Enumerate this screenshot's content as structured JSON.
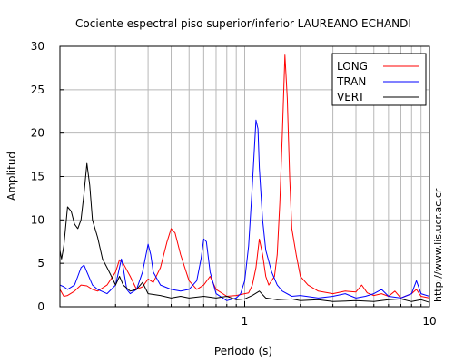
{
  "chart_data": {
    "type": "line",
    "title": "Cociente espectral piso superior/inferior LAUREANO ECHANDI",
    "xlabel": "Periodo (s)",
    "ylabel": "Amplitud",
    "xscale": "log",
    "xlim": [
      0.1,
      10
    ],
    "ylim": [
      0,
      30
    ],
    "grid": true,
    "legend_position": "top-right",
    "x_ticks": [
      {
        "value": 1,
        "label": "1"
      },
      {
        "value": 10,
        "label": "10"
      }
    ],
    "y_ticks": [
      {
        "value": 0,
        "label": "0"
      },
      {
        "value": 5,
        "label": "5"
      },
      {
        "value": 10,
        "label": "10"
      },
      {
        "value": 15,
        "label": "15"
      },
      {
        "value": 20,
        "label": "20"
      },
      {
        "value": 25,
        "label": "25"
      },
      {
        "value": 30,
        "label": "30"
      }
    ],
    "series": [
      {
        "name": "LONG",
        "color": "#ff0000",
        "points": [
          [
            0.1,
            2.0
          ],
          [
            0.105,
            1.2
          ],
          [
            0.11,
            1.3
          ],
          [
            0.12,
            1.8
          ],
          [
            0.13,
            2.5
          ],
          [
            0.14,
            2.4
          ],
          [
            0.15,
            2.0
          ],
          [
            0.16,
            1.8
          ],
          [
            0.18,
            2.5
          ],
          [
            0.2,
            4.0
          ],
          [
            0.21,
            5.4
          ],
          [
            0.22,
            5.0
          ],
          [
            0.24,
            3.5
          ],
          [
            0.26,
            2.0
          ],
          [
            0.28,
            2.3
          ],
          [
            0.3,
            3.2
          ],
          [
            0.32,
            2.8
          ],
          [
            0.35,
            4.5
          ],
          [
            0.38,
            7.5
          ],
          [
            0.4,
            9.0
          ],
          [
            0.42,
            8.5
          ],
          [
            0.45,
            6.0
          ],
          [
            0.5,
            3.0
          ],
          [
            0.55,
            2.0
          ],
          [
            0.6,
            2.5
          ],
          [
            0.65,
            3.5
          ],
          [
            0.7,
            2.0
          ],
          [
            0.8,
            1.2
          ],
          [
            0.9,
            1.3
          ],
          [
            1.0,
            1.5
          ],
          [
            1.05,
            1.6
          ],
          [
            1.1,
            2.5
          ],
          [
            1.15,
            4.5
          ],
          [
            1.2,
            7.8
          ],
          [
            1.25,
            6.0
          ],
          [
            1.3,
            3.5
          ],
          [
            1.35,
            2.5
          ],
          [
            1.45,
            3.5
          ],
          [
            1.5,
            6.0
          ],
          [
            1.55,
            12.0
          ],
          [
            1.6,
            20.0
          ],
          [
            1.65,
            29.0
          ],
          [
            1.7,
            24.0
          ],
          [
            1.75,
            15.0
          ],
          [
            1.8,
            9.0
          ],
          [
            1.9,
            6.0
          ],
          [
            2.0,
            3.5
          ],
          [
            2.2,
            2.5
          ],
          [
            2.5,
            1.8
          ],
          [
            3.0,
            1.5
          ],
          [
            3.5,
            1.8
          ],
          [
            4.0,
            1.7
          ],
          [
            4.3,
            2.5
          ],
          [
            4.6,
            1.6
          ],
          [
            5.0,
            1.3
          ],
          [
            5.5,
            1.5
          ],
          [
            6.0,
            1.2
          ],
          [
            6.5,
            1.8
          ],
          [
            7.0,
            1.0
          ],
          [
            8.0,
            1.5
          ],
          [
            8.5,
            2.0
          ],
          [
            9.0,
            1.2
          ],
          [
            10.0,
            1.0
          ]
        ]
      },
      {
        "name": "TRAN",
        "color": "#0000ff",
        "points": [
          [
            0.1,
            2.5
          ],
          [
            0.105,
            2.3
          ],
          [
            0.11,
            2.0
          ],
          [
            0.12,
            2.5
          ],
          [
            0.125,
            3.5
          ],
          [
            0.13,
            4.5
          ],
          [
            0.135,
            4.8
          ],
          [
            0.14,
            4.0
          ],
          [
            0.15,
            2.5
          ],
          [
            0.16,
            2.0
          ],
          [
            0.18,
            1.5
          ],
          [
            0.2,
            2.5
          ],
          [
            0.21,
            4.5
          ],
          [
            0.215,
            5.5
          ],
          [
            0.22,
            4.5
          ],
          [
            0.23,
            2.0
          ],
          [
            0.24,
            1.5
          ],
          [
            0.26,
            2.0
          ],
          [
            0.28,
            4.0
          ],
          [
            0.3,
            7.2
          ],
          [
            0.31,
            6.0
          ],
          [
            0.32,
            4.0
          ],
          [
            0.35,
            2.5
          ],
          [
            0.4,
            2.0
          ],
          [
            0.45,
            1.8
          ],
          [
            0.5,
            2.0
          ],
          [
            0.55,
            3.0
          ],
          [
            0.58,
            5.5
          ],
          [
            0.6,
            7.8
          ],
          [
            0.62,
            7.5
          ],
          [
            0.65,
            4.0
          ],
          [
            0.7,
            1.5
          ],
          [
            0.8,
            0.7
          ],
          [
            0.9,
            1.0
          ],
          [
            0.95,
            1.5
          ],
          [
            1.0,
            3.0
          ],
          [
            1.05,
            7.0
          ],
          [
            1.1,
            14.0
          ],
          [
            1.15,
            21.5
          ],
          [
            1.18,
            20.5
          ],
          [
            1.2,
            16.0
          ],
          [
            1.25,
            10.0
          ],
          [
            1.3,
            6.5
          ],
          [
            1.4,
            4.0
          ],
          [
            1.5,
            2.5
          ],
          [
            1.6,
            1.8
          ],
          [
            1.8,
            1.2
          ],
          [
            2.0,
            1.3
          ],
          [
            2.5,
            1.0
          ],
          [
            3.0,
            1.2
          ],
          [
            3.5,
            1.5
          ],
          [
            4.0,
            1.0
          ],
          [
            4.5,
            1.2
          ],
          [
            5.0,
            1.5
          ],
          [
            5.5,
            2.0
          ],
          [
            6.0,
            1.2
          ],
          [
            7.0,
            1.0
          ],
          [
            8.0,
            1.5
          ],
          [
            8.5,
            3.0
          ],
          [
            9.0,
            1.5
          ],
          [
            10.0,
            1.2
          ]
        ]
      },
      {
        "name": "VERT",
        "color": "#000000",
        "points": [
          [
            0.1,
            6.5
          ],
          [
            0.102,
            5.5
          ],
          [
            0.105,
            7.0
          ],
          [
            0.11,
            11.5
          ],
          [
            0.115,
            11.0
          ],
          [
            0.12,
            9.5
          ],
          [
            0.125,
            9.0
          ],
          [
            0.13,
            10.0
          ],
          [
            0.135,
            13.0
          ],
          [
            0.14,
            16.5
          ],
          [
            0.145,
            14.0
          ],
          [
            0.15,
            10.0
          ],
          [
            0.16,
            8.0
          ],
          [
            0.17,
            5.5
          ],
          [
            0.18,
            4.5
          ],
          [
            0.19,
            3.5
          ],
          [
            0.2,
            2.5
          ],
          [
            0.21,
            3.5
          ],
          [
            0.22,
            2.5
          ],
          [
            0.24,
            1.8
          ],
          [
            0.26,
            2.0
          ],
          [
            0.28,
            2.8
          ],
          [
            0.3,
            1.5
          ],
          [
            0.35,
            1.3
          ],
          [
            0.4,
            1.0
          ],
          [
            0.45,
            1.2
          ],
          [
            0.5,
            1.0
          ],
          [
            0.6,
            1.2
          ],
          [
            0.7,
            1.0
          ],
          [
            0.8,
            1.2
          ],
          [
            0.9,
            0.8
          ],
          [
            1.0,
            0.9
          ],
          [
            1.1,
            1.3
          ],
          [
            1.2,
            1.8
          ],
          [
            1.3,
            1.0
          ],
          [
            1.5,
            0.8
          ],
          [
            1.8,
            0.9
          ],
          [
            2.0,
            0.7
          ],
          [
            2.5,
            0.8
          ],
          [
            3.0,
            0.6
          ],
          [
            4.0,
            0.7
          ],
          [
            5.0,
            0.6
          ],
          [
            6.0,
            0.8
          ],
          [
            7.0,
            0.9
          ],
          [
            8.0,
            0.6
          ],
          [
            9.0,
            0.8
          ],
          [
            10.0,
            0.5
          ]
        ]
      }
    ]
  },
  "watermark": "http://www.lis.ucr.ac.cr"
}
